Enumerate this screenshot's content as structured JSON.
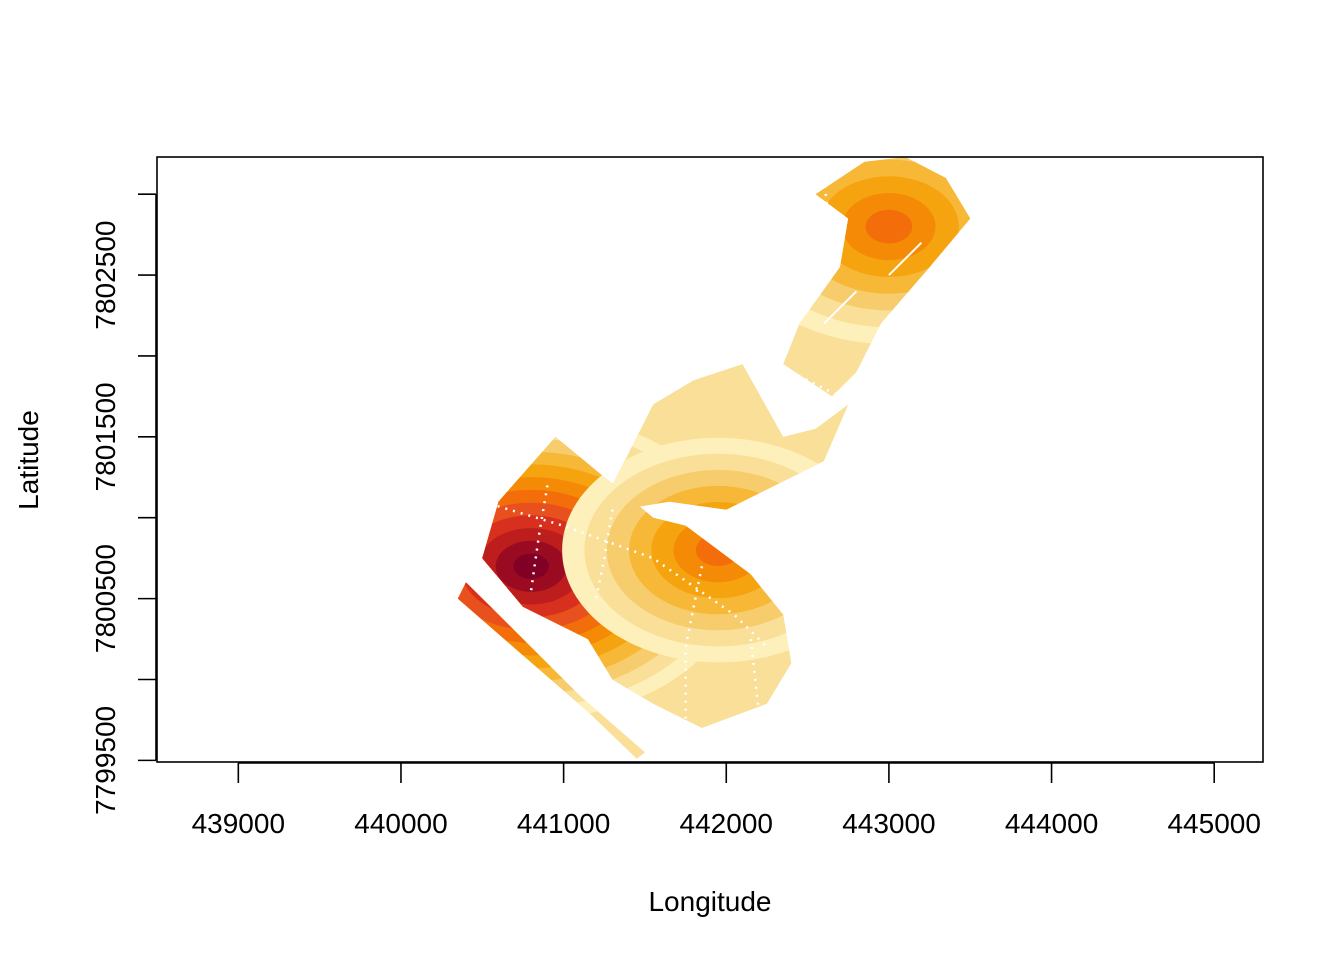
{
  "chart_data": {
    "type": "heatmap",
    "title": "",
    "xlabel": "Longitude",
    "ylabel": "Latitude",
    "xlim": [
      438500,
      445300
    ],
    "ylim": [
      7799490,
      7803230
    ],
    "x_ticks": [
      439000,
      440000,
      441000,
      442000,
      443000,
      444000,
      445000
    ],
    "x_tick_labels": [
      "439000",
      "440000",
      "441000",
      "442000",
      "443000",
      "444000",
      "445000"
    ],
    "y_ticks": [
      7799500,
      7800000,
      7800500,
      7801000,
      7801500,
      7802000,
      7802500,
      7803000
    ],
    "y_tick_labels": [
      "7799500",
      "7800500",
      "7801500",
      "7802500"
    ],
    "grid": false,
    "legend": "none",
    "palette": [
      "#800026",
      "#9a0b21",
      "#bd1d1d",
      "#d7301f",
      "#e8511e",
      "#f46d0b",
      "#f48a06",
      "#f5a30f",
      "#f6b836",
      "#f7cc6c",
      "#f9df97",
      "#fdf0bb",
      "#ffffcc"
    ],
    "hotspots": [
      {
        "x": 440800,
        "y": 7800700,
        "level": 1.0
      },
      {
        "x": 443000,
        "y": 7802800,
        "level": 0.62
      },
      {
        "x": 441950,
        "y": 7800800,
        "level": 0.55
      }
    ],
    "coverage_regions": [
      {
        "name": "southwest",
        "polygon": [
          [
            440500,
            7800750
          ],
          [
            440600,
            7801100
          ],
          [
            440950,
            7801500
          ],
          [
            441250,
            7801250
          ],
          [
            441550,
            7801000
          ],
          [
            441750,
            7800950
          ],
          [
            442150,
            7800650
          ],
          [
            442350,
            7800400
          ],
          [
            442400,
            7800100
          ],
          [
            442250,
            7799850
          ],
          [
            441850,
            7799700
          ],
          [
            441550,
            7799850
          ],
          [
            441300,
            7800000
          ],
          [
            441150,
            7800250
          ],
          [
            440750,
            7800450
          ]
        ]
      },
      {
        "name": "southwest-strip",
        "polygon": [
          [
            440350,
            7800500
          ],
          [
            441150,
            7799800
          ],
          [
            441450,
            7799510
          ],
          [
            441500,
            7799550
          ],
          [
            441100,
            7799900
          ],
          [
            440600,
            7800400
          ],
          [
            440400,
            7800600
          ]
        ]
      },
      {
        "name": "middle",
        "polygon": [
          [
            441250,
            7801100
          ],
          [
            441550,
            7801700
          ],
          [
            441800,
            7801850
          ],
          [
            442100,
            7801950
          ],
          [
            442350,
            7801500
          ],
          [
            442550,
            7801550
          ],
          [
            442750,
            7801700
          ],
          [
            442600,
            7801350
          ],
          [
            442300,
            7801200
          ],
          [
            442000,
            7801050
          ],
          [
            441650,
            7801100
          ],
          [
            441350,
            7801050
          ]
        ]
      },
      {
        "name": "northeast",
        "polygon": [
          [
            442350,
            7801950
          ],
          [
            442450,
            7802200
          ],
          [
            442700,
            7802550
          ],
          [
            442750,
            7802850
          ],
          [
            442550,
            7803000
          ],
          [
            442850,
            7803200
          ],
          [
            443100,
            7803230
          ],
          [
            443350,
            7803100
          ],
          [
            443500,
            7802850
          ],
          [
            443250,
            7802550
          ],
          [
            442950,
            7802200
          ],
          [
            442800,
            7801900
          ],
          [
            442650,
            7801750
          ]
        ]
      }
    ],
    "dotted_lines": [
      [
        [
          440500,
          7801100
        ],
        [
          441000,
          7800950
        ],
        [
          441550,
          7800750
        ],
        [
          442050,
          7800400
        ],
        [
          442250,
          7800200
        ]
      ],
      [
        [
          440900,
          7801200
        ],
        [
          440850,
          7800900
        ],
        [
          440800,
          7800550
        ]
      ],
      [
        [
          441300,
          7801050
        ],
        [
          441250,
          7800750
        ],
        [
          441200,
          7800500
        ]
      ],
      [
        [
          441850,
          7800700
        ],
        [
          441750,
          7800200
        ],
        [
          441750,
          7799600
        ]
      ],
      [
        [
          442150,
          7800250
        ],
        [
          442200,
          7799800
        ]
      ],
      [
        [
          442600,
          7803100
        ],
        [
          442650,
          7802650
        ]
      ],
      [
        [
          442400,
          7801900
        ],
        [
          442700,
          7801750
        ]
      ]
    ],
    "solid_white_lines": [
      [
        [
          442600,
          7802200
        ],
        [
          442800,
          7802400
        ]
      ],
      [
        [
          443000,
          7802500
        ],
        [
          443200,
          7802700
        ]
      ]
    ]
  }
}
